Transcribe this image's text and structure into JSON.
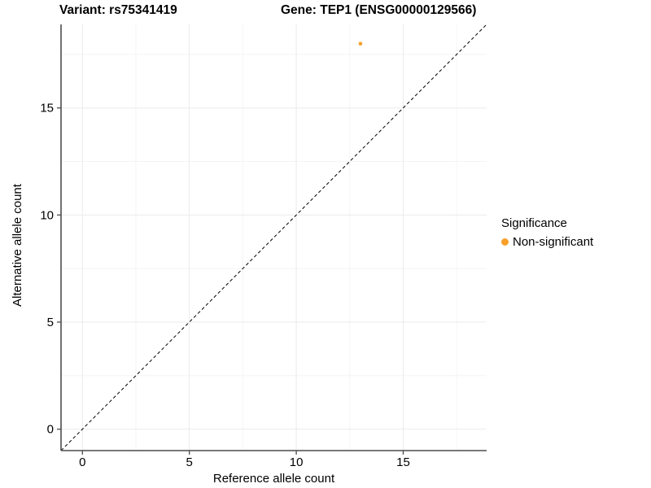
{
  "titles": {
    "variant": "Variant: rs75341419",
    "gene": "Gene: TEP1 (ENSG00000129566)"
  },
  "chart_data": {
    "type": "scatter",
    "title_left": "Variant: rs75341419",
    "title_right": "Gene: TEP1 (ENSG00000129566)",
    "xlabel": "Reference allele count",
    "ylabel": "Alternative allele count",
    "xlim": [
      -1,
      18.9
    ],
    "ylim": [
      -1,
      18.9
    ],
    "x_ticks": [
      0,
      5,
      10,
      15
    ],
    "y_ticks": [
      0,
      5,
      10,
      15
    ],
    "minor_gridlines": [
      2.5,
      7.5,
      12.5,
      17.5
    ],
    "grid": true,
    "points": [
      {
        "x": 13,
        "y": 18,
        "series": "Non-significant"
      }
    ],
    "identity_line": {
      "show": true,
      "style": "dashed",
      "slope": 1,
      "intercept": 0
    },
    "legend": {
      "title": "Significance",
      "position": "right",
      "items": [
        {
          "label": "Non-significant",
          "color": "#F9A02B"
        }
      ]
    }
  },
  "colors": {
    "point": "#F9A02B",
    "axis_line": "#4d4d4d",
    "tick_text": "#000000",
    "grid_major": "#ebebeb",
    "grid_minor": "#f4f4f4",
    "identity_line": "#000000",
    "background": "#ffffff"
  }
}
